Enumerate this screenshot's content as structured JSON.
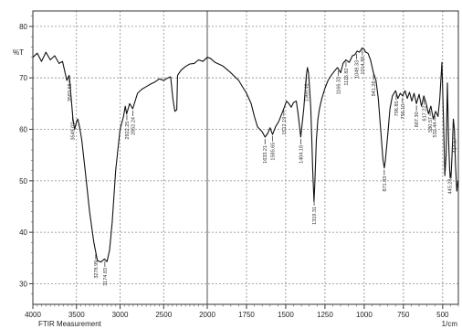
{
  "chart_data": {
    "type": "line",
    "title": "",
    "ylabel": "%T",
    "xlabel_unit": "1/cm",
    "footer": "FTIR Measurement",
    "x_reversed": true,
    "xlim": [
      4000,
      400
    ],
    "ylim": [
      26,
      83
    ],
    "grid": true,
    "x_ticks": [
      4000,
      3500,
      3000,
      2500,
      2000,
      1750,
      1500,
      1250,
      1000,
      750,
      500
    ],
    "x_tick_labels": [
      "4000",
      "3500",
      "3000",
      "2500",
      "2000",
      "1750",
      "1500",
      "1250",
      "1000",
      "750",
      "500"
    ],
    "y_ticks": [
      30,
      40,
      50,
      60,
      70,
      80
    ],
    "y_tick_labels": [
      "30",
      "40",
      "50",
      "60",
      "70",
      "80"
    ],
    "series": [
      {
        "name": "",
        "color": "#111111",
        "points": [
          [
            4000,
            74.0
          ],
          [
            3950,
            74.8
          ],
          [
            3900,
            73.2
          ],
          [
            3850,
            75.0
          ],
          [
            3800,
            73.5
          ],
          [
            3750,
            74.3
          ],
          [
            3700,
            72.8
          ],
          [
            3660,
            73.2
          ],
          [
            3610,
            69.5
          ],
          [
            3583,
            70.5
          ],
          [
            3560,
            66.0
          ],
          [
            3540,
            62.0
          ],
          [
            3520,
            60.0
          ],
          [
            3500,
            61.5
          ],
          [
            3485,
            62.0
          ],
          [
            3465,
            60.5
          ],
          [
            3440,
            58.0
          ],
          [
            3400,
            52.0
          ],
          [
            3350,
            44.0
          ],
          [
            3300,
            38.0
          ],
          [
            3260,
            34.5
          ],
          [
            3220,
            34.2
          ],
          [
            3180,
            34.8
          ],
          [
            3150,
            34.3
          ],
          [
            3120,
            36.5
          ],
          [
            3090,
            42.0
          ],
          [
            3050,
            52.0
          ],
          [
            3000,
            60.0
          ],
          [
            2960,
            62.5
          ],
          [
            2940,
            64.5
          ],
          [
            2925,
            63.0
          ],
          [
            2890,
            65.0
          ],
          [
            2854,
            64.0
          ],
          [
            2800,
            67.0
          ],
          [
            2750,
            67.8
          ],
          [
            2700,
            68.3
          ],
          [
            2650,
            68.8
          ],
          [
            2600,
            69.2
          ],
          [
            2550,
            69.8
          ],
          [
            2500,
            69.5
          ],
          [
            2450,
            70.0
          ],
          [
            2420,
            70.2
          ],
          [
            2395,
            66.0
          ],
          [
            2372,
            63.5
          ],
          [
            2350,
            63.8
          ],
          [
            2340,
            70.5
          ],
          [
            2300,
            71.5
          ],
          [
            2250,
            72.2
          ],
          [
            2200,
            72.7
          ],
          [
            2150,
            72.8
          ],
          [
            2100,
            73.5
          ],
          [
            2050,
            73.2
          ],
          [
            2000,
            74.0
          ],
          [
            1980,
            73.8
          ],
          [
            1950,
            73.0
          ],
          [
            1900,
            72.3
          ],
          [
            1850,
            71.0
          ],
          [
            1800,
            69.5
          ],
          [
            1750,
            67.0
          ],
          [
            1720,
            65.0
          ],
          [
            1700,
            62.5
          ],
          [
            1680,
            60.5
          ],
          [
            1650,
            59.5
          ],
          [
            1632,
            58.5
          ],
          [
            1615,
            59.2
          ],
          [
            1600,
            60.3
          ],
          [
            1584,
            59.0
          ],
          [
            1565,
            60.5
          ],
          [
            1545,
            61.5
          ],
          [
            1525,
            63.0
          ],
          [
            1510,
            64.2
          ],
          [
            1495,
            65.5
          ],
          [
            1480,
            65.0
          ],
          [
            1465,
            64.3
          ],
          [
            1450,
            65.2
          ],
          [
            1433,
            65.5
          ],
          [
            1421,
            63.0
          ],
          [
            1410,
            60.0
          ],
          [
            1404,
            58.5
          ],
          [
            1397,
            60.5
          ],
          [
            1385,
            64.0
          ],
          [
            1375,
            68.0
          ],
          [
            1369,
            70.5
          ],
          [
            1362,
            72.0
          ],
          [
            1355,
            71.0
          ],
          [
            1348,
            68.0
          ],
          [
            1340,
            64.0
          ],
          [
            1334,
            58.0
          ],
          [
            1328,
            52.0
          ],
          [
            1320,
            46.0
          ],
          [
            1315,
            49.0
          ],
          [
            1305,
            58.0
          ],
          [
            1295,
            62.0
          ],
          [
            1285,
            64.0
          ],
          [
            1270,
            66.0
          ],
          [
            1250,
            68.0
          ],
          [
            1230,
            69.5
          ],
          [
            1210,
            70.5
          ],
          [
            1190,
            71.3
          ],
          [
            1170,
            72.0
          ],
          [
            1150,
            71.0
          ],
          [
            1135,
            72.8
          ],
          [
            1116,
            73.5
          ],
          [
            1095,
            73.0
          ],
          [
            1075,
            74.3
          ],
          [
            1060,
            74.5
          ],
          [
            1045,
            75.2
          ],
          [
            1030,
            75.0
          ],
          [
            1013,
            75.8
          ],
          [
            1000,
            75.5
          ],
          [
            990,
            75.0
          ],
          [
            976,
            74.8
          ],
          [
            960,
            73.5
          ],
          [
            941,
            71.0
          ],
          [
            925,
            69.5
          ],
          [
            910,
            66.0
          ],
          [
            895,
            60.0
          ],
          [
            880,
            54.0
          ],
          [
            872,
            52.5
          ],
          [
            865,
            54.0
          ],
          [
            850,
            59.0
          ],
          [
            836,
            64.0
          ],
          [
            820,
            66.5
          ],
          [
            800,
            67.5
          ],
          [
            785,
            66.0
          ],
          [
            770,
            67.0
          ],
          [
            755,
            66.5
          ],
          [
            740,
            67.5
          ],
          [
            725,
            66.0
          ],
          [
            711,
            67.2
          ],
          [
            697,
            65.5
          ],
          [
            682,
            67.0
          ],
          [
            667,
            65.0
          ],
          [
            650,
            66.8
          ],
          [
            635,
            64.5
          ],
          [
            620,
            66.5
          ],
          [
            605,
            65.0
          ],
          [
            590,
            63.0
          ],
          [
            575,
            64.5
          ],
          [
            560,
            62.0
          ],
          [
            545,
            63.5
          ],
          [
            530,
            62.5
          ],
          [
            518,
            66.0
          ],
          [
            505,
            73.0
          ],
          [
            495,
            62.0
          ],
          [
            486,
            51.0
          ],
          [
            478,
            55.0
          ],
          [
            470,
            69.0
          ],
          [
            462,
            58.0
          ],
          [
            455,
            52.0
          ],
          [
            447,
            50.5
          ],
          [
            440,
            55.0
          ],
          [
            432,
            62.0
          ],
          [
            425,
            60.0
          ],
          [
            418,
            53.0
          ],
          [
            410,
            48.0
          ],
          [
            403,
            50.0
          ]
        ]
      }
    ],
    "annotations": [
      {
        "x": 3583,
        "text": "3583.58"
      },
      {
        "x": 3545,
        "text": "3549.02"
      },
      {
        "x": 3279,
        "text": "3278.99"
      },
      {
        "x": 3174,
        "text": "3174.83"
      },
      {
        "x": 2922,
        "text": "2922.25"
      },
      {
        "x": 2854,
        "text": "2852.24"
      },
      {
        "x": 1632,
        "text": "1633.21"
      },
      {
        "x": 1585,
        "text": "1585.65"
      },
      {
        "x": 1512,
        "text": "1512.19"
      },
      {
        "x": 1404,
        "text": "1404.18"
      },
      {
        "x": 1369,
        "text": "1369.46"
      },
      {
        "x": 1319,
        "text": "1319.31"
      },
      {
        "x": 1166,
        "text": "1166.33"
      },
      {
        "x": 1116,
        "text": "1116.82"
      },
      {
        "x": 1049,
        "text": "1049.33"
      },
      {
        "x": 1012,
        "text": "1014.89"
      },
      {
        "x": 941,
        "text": "941.26"
      },
      {
        "x": 872,
        "text": "871.83"
      },
      {
        "x": 796,
        "text": "796.85"
      },
      {
        "x": 756,
        "text": "756.10"
      },
      {
        "x": 667,
        "text": "667.30"
      },
      {
        "x": 617,
        "text": "617.22"
      },
      {
        "x": 580,
        "text": "580.57"
      },
      {
        "x": 550,
        "text": "532.44"
      },
      {
        "x": 455,
        "text": "445.28"
      },
      {
        "x": 425,
        "text": "414.57"
      }
    ]
  }
}
